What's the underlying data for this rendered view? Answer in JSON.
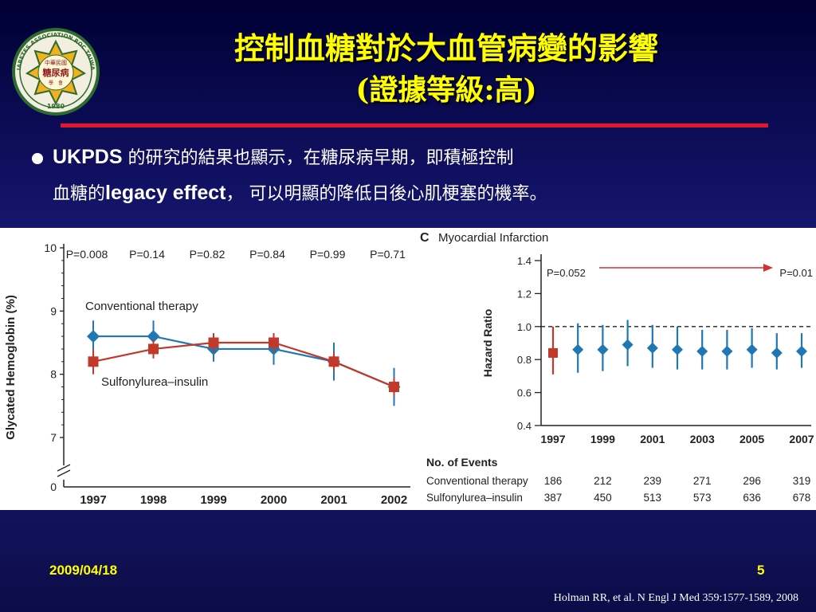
{
  "slide": {
    "title_line1": "控制血糖對於大血管病變的影響",
    "title_line2": "(證據等級:高)",
    "bullet_part1_bold": "UKPDS",
    "bullet_part1_rest": " 的研究的結果也顯示，在糖尿病早期，即積極控制",
    "bullet_part2_pre": "血糖的",
    "bullet_part2_bold": "legacy effect",
    "bullet_part2_rest": "， 可以明顯的降低日後心肌梗塞的機率。",
    "footer_date": "2009/04/18",
    "page_number": "5",
    "citation": "Holman RR, et al. N Engl J Med 359:1577-1589, 2008",
    "logo": {
      "text_top": "中華民國",
      "text_main": "糖尿病",
      "text_bottom": "學　會",
      "ring_text": "DIABETES ASSOCIATION ROC TAIWAN",
      "year": "1980"
    },
    "colors": {
      "title": "#ffff00",
      "rule": "#e8142c",
      "background": "#1a1a78",
      "conventional": "#1f77b4",
      "sulfonylurea": "#c0392b"
    }
  },
  "chart_data": [
    {
      "type": "line",
      "ylabel": "Glycated Hemoglobin (%)",
      "xlabel": "",
      "categories": [
        "1997",
        "1998",
        "1999",
        "2000",
        "2001",
        "2002"
      ],
      "y_ticks": [
        "10",
        "9",
        "8",
        "7",
        "0"
      ],
      "ylim": [
        7,
        10
      ],
      "axis_break": true,
      "p_values": [
        "P=0.008",
        "P=0.14",
        "P=0.82",
        "P=0.84",
        "P=0.99",
        "P=0.71"
      ],
      "series": [
        {
          "name": "Conventional therapy",
          "color": "#1f77b4",
          "marker": "diamond",
          "values": [
            8.6,
            8.6,
            8.4,
            8.4,
            8.2,
            7.8
          ],
          "err": [
            0.25,
            0.25,
            0.2,
            0.25,
            0.3,
            0.3
          ]
        },
        {
          "name": "Sulfonylurea–insulin",
          "color": "#c0392b",
          "marker": "square",
          "values": [
            8.2,
            8.4,
            8.5,
            8.5,
            8.2,
            7.8
          ],
          "err": [
            0.2,
            0.15,
            0.15,
            0.15,
            0.15,
            0.15
          ]
        }
      ]
    },
    {
      "type": "scatter",
      "panel_letter": "C",
      "title": "Myocardial Infarction",
      "ylabel": "Hazard Ratio",
      "y_ticks": [
        "1.4",
        "1.2",
        "1.0",
        "0.8",
        "0.6",
        "0.4"
      ],
      "ylim": [
        0.4,
        1.4
      ],
      "x_ticks": [
        "1997",
        "1999",
        "2001",
        "2003",
        "2005",
        "2007"
      ],
      "xlim": [
        1997,
        2007
      ],
      "reference_line": 1.0,
      "p_start": "P=0.052",
      "p_end": "P=0.01",
      "points": [
        {
          "x": 1997,
          "hr": 0.84,
          "lo": 0.71,
          "hi": 1.0,
          "color": "#c0392b",
          "marker": "square"
        },
        {
          "x": 1998,
          "hr": 0.86,
          "lo": 0.72,
          "hi": 1.02,
          "color": "#1f77b4",
          "marker": "diamond"
        },
        {
          "x": 1999,
          "hr": 0.86,
          "lo": 0.73,
          "hi": 1.01,
          "color": "#1f77b4",
          "marker": "diamond"
        },
        {
          "x": 2000,
          "hr": 0.89,
          "lo": 0.76,
          "hi": 1.04,
          "color": "#1f77b4",
          "marker": "diamond"
        },
        {
          "x": 2001,
          "hr": 0.87,
          "lo": 0.75,
          "hi": 1.01,
          "color": "#1f77b4",
          "marker": "diamond"
        },
        {
          "x": 2002,
          "hr": 0.86,
          "lo": 0.74,
          "hi": 1.0,
          "color": "#1f77b4",
          "marker": "diamond"
        },
        {
          "x": 2003,
          "hr": 0.85,
          "lo": 0.74,
          "hi": 0.98,
          "color": "#1f77b4",
          "marker": "diamond"
        },
        {
          "x": 2004,
          "hr": 0.85,
          "lo": 0.74,
          "hi": 0.98,
          "color": "#1f77b4",
          "marker": "diamond"
        },
        {
          "x": 2005,
          "hr": 0.86,
          "lo": 0.75,
          "hi": 0.99,
          "color": "#1f77b4",
          "marker": "diamond"
        },
        {
          "x": 2006,
          "hr": 0.84,
          "lo": 0.74,
          "hi": 0.96,
          "color": "#1f77b4",
          "marker": "diamond"
        },
        {
          "x": 2007,
          "hr": 0.85,
          "lo": 0.75,
          "hi": 0.96,
          "color": "#1f77b4",
          "marker": "diamond"
        }
      ],
      "events_table": {
        "title": "No. of Events",
        "rows": [
          {
            "label": "Conventional therapy",
            "values": [
              "186",
              "212",
              "239",
              "271",
              "296",
              "319"
            ]
          },
          {
            "label": "Sulfonylurea–insulin",
            "values": [
              "387",
              "450",
              "513",
              "573",
              "636",
              "678"
            ]
          }
        ]
      }
    }
  ]
}
